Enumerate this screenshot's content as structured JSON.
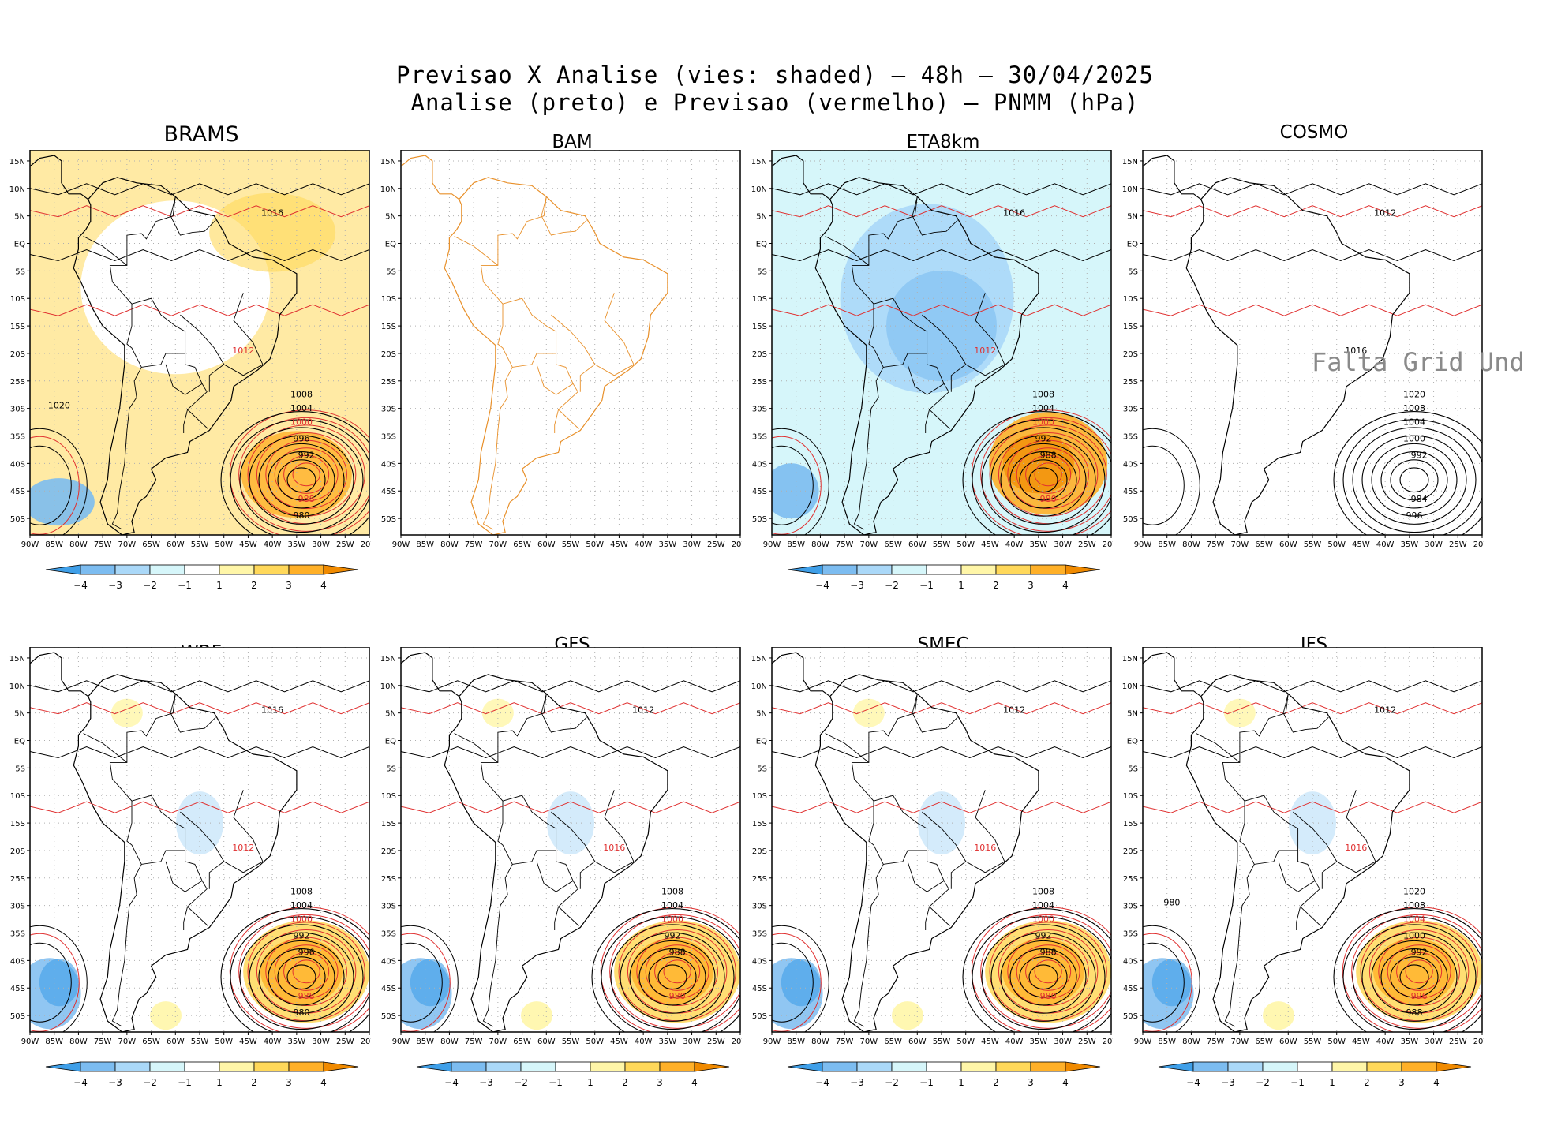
{
  "title_line1": "Previsao X Analise (vies: shaded) – 48h – 30/04/2025",
  "title_line2": "Analise (preto) e Previsao (vermelho) – PNMM (hPa)",
  "lat_labels": [
    "15N",
    "10N",
    "5N",
    "EQ",
    "5S",
    "10S",
    "15S",
    "20S",
    "25S",
    "30S",
    "35S",
    "40S",
    "45S",
    "50S"
  ],
  "lon_labels": [
    "90W",
    "85W",
    "80W",
    "75W",
    "70W",
    "65W",
    "60W",
    "55W",
    "50W",
    "45W",
    "40W",
    "35W",
    "30W",
    "25W",
    "20W"
  ],
  "colorbar_labels": [
    "-4",
    "-3",
    "-2",
    "-1",
    "1",
    "2",
    "3",
    "4"
  ],
  "colorbar_colors": [
    "#3f9fe8",
    "#7cbcf0",
    "#aad8f8",
    "#d6f6fa",
    "#ffffff",
    "#fff6a8",
    "#ffd85a",
    "#ffb028",
    "#f08a00"
  ],
  "colors": {
    "analysis": "#000000",
    "forecast": "#e03030",
    "border_bam": "#e8902a",
    "grid": "#b0b0b0"
  },
  "no_data_text": "Falta Grid Und",
  "panels": [
    {
      "name": "BRAMS",
      "bias": "warm",
      "colorbar": true,
      "contour_labels": [
        "1016",
        "1012",
        "1008",
        "1004",
        "1000",
        "996",
        "992",
        "988",
        "980",
        "1020"
      ]
    },
    {
      "name": "BAM",
      "bias": "none",
      "colorbar": false,
      "contour_labels": []
    },
    {
      "name": "ETA8km",
      "bias": "cool",
      "colorbar": true,
      "contour_labels": [
        "1016",
        "1012",
        "1008",
        "1004",
        "1000",
        "992",
        "988",
        "980"
      ]
    },
    {
      "name": "COSMO",
      "bias": "none",
      "colorbar": false,
      "contour_labels": [
        "1012",
        "1016",
        "1020",
        "1008",
        "1004",
        "1000",
        "992",
        "984",
        "996"
      ]
    },
    {
      "name": "WRF",
      "bias": "mixed",
      "colorbar": true,
      "contour_labels": [
        "1016",
        "1012",
        "1008",
        "1004",
        "1000",
        "992",
        "996",
        "988",
        "980"
      ]
    },
    {
      "name": "GFS",
      "bias": "mixed",
      "colorbar": true,
      "contour_labels": [
        "1012",
        "1016",
        "1008",
        "1004",
        "1000",
        "992",
        "988",
        "980"
      ]
    },
    {
      "name": "SMEC",
      "bias": "mixed",
      "colorbar": true,
      "contour_labels": [
        "1012",
        "1016",
        "1008",
        "1004",
        "1000",
        "992",
        "988",
        "980"
      ]
    },
    {
      "name": "IFS",
      "bias": "mixed",
      "colorbar": true,
      "contour_labels": [
        "1012",
        "1016",
        "1020",
        "1008",
        "1004",
        "1000",
        "992",
        "996",
        "988",
        "980"
      ]
    }
  ]
}
